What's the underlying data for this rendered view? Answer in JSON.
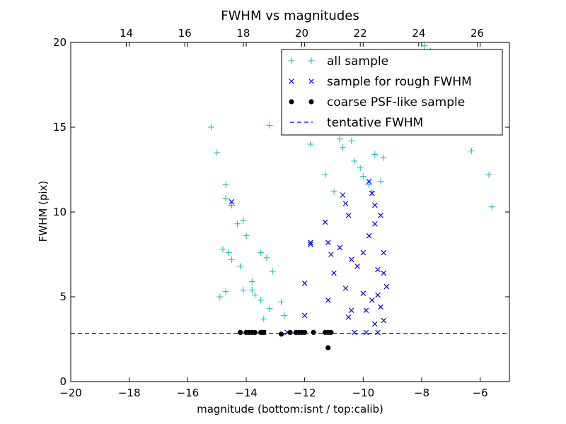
{
  "chart_data": {
    "type": "scatter",
    "title": "FWHM vs magnitudes",
    "xlabel": "magnitude (bottom:isnt / top:calib)",
    "ylabel": "FWHM (pix)",
    "xlim": [
      -20,
      -5
    ],
    "ylim": [
      0,
      20
    ],
    "x_ticks": [
      -20,
      -18,
      -16,
      -14,
      -12,
      -10,
      -8,
      -6
    ],
    "x_tick_labels": [
      "−20",
      "−18",
      "−16",
      "−14",
      "−12",
      "−10",
      "−8",
      "−6"
    ],
    "y_ticks": [
      0,
      5,
      10,
      15,
      20
    ],
    "y_tick_labels": [
      "0",
      "5",
      "10",
      "15",
      "20"
    ],
    "top_axis": {
      "offset": 32.1,
      "ticks": [
        14,
        16,
        18,
        20,
        22,
        24,
        26
      ],
      "tick_labels": [
        "14",
        "16",
        "18",
        "20",
        "22",
        "24",
        "26"
      ]
    },
    "grid": false,
    "legend_position": "top-right",
    "series": [
      {
        "name": "all sample",
        "marker": "+",
        "color": "#00bfbf",
        "points": [
          [
            -15.2,
            15.0
          ],
          [
            -15.0,
            13.5
          ],
          [
            -14.7,
            11.6
          ],
          [
            -14.7,
            10.8
          ],
          [
            -14.5,
            10.4
          ],
          [
            -14.3,
            9.3
          ],
          [
            -14.1,
            9.5
          ],
          [
            -14.0,
            8.6
          ],
          [
            -14.8,
            7.8
          ],
          [
            -14.6,
            7.6
          ],
          [
            -14.5,
            7.2
          ],
          [
            -14.2,
            6.8
          ],
          [
            -13.5,
            7.6
          ],
          [
            -13.3,
            7.3
          ],
          [
            -13.1,
            6.5
          ],
          [
            -14.7,
            5.3
          ],
          [
            -14.9,
            5.0
          ],
          [
            -14.1,
            5.4
          ],
          [
            -13.8,
            5.9
          ],
          [
            -13.8,
            5.4
          ],
          [
            -13.7,
            5.1
          ],
          [
            -13.5,
            4.8
          ],
          [
            -13.2,
            4.3
          ],
          [
            -12.8,
            4.7
          ],
          [
            -13.4,
            3.7
          ],
          [
            -12.7,
            3.9
          ],
          [
            -13.2,
            15.1
          ],
          [
            -12.6,
            15.2
          ],
          [
            -11.9,
            15.8
          ],
          [
            -11.2,
            15.5
          ],
          [
            -11.8,
            14.0
          ],
          [
            -11.3,
            12.2
          ],
          [
            -11.0,
            11.2
          ],
          [
            -10.8,
            14.3
          ],
          [
            -10.7,
            13.8
          ],
          [
            -10.4,
            14.2
          ],
          [
            -10.3,
            13.0
          ],
          [
            -10.1,
            12.6
          ],
          [
            -10.0,
            12.1
          ],
          [
            -9.8,
            11.6
          ],
          [
            -9.7,
            11.2
          ],
          [
            -9.6,
            13.4
          ],
          [
            -9.4,
            11.8
          ],
          [
            -9.3,
            13.2
          ],
          [
            -9.0,
            16.2
          ],
          [
            -8.6,
            17.0
          ],
          [
            -8.3,
            16.5
          ],
          [
            -8.1,
            18.2
          ],
          [
            -7.9,
            19.8
          ],
          [
            -7.7,
            19.5
          ],
          [
            -7.5,
            17.8
          ],
          [
            -7.2,
            16.9
          ],
          [
            -7.0,
            16.1
          ],
          [
            -6.6,
            15.1
          ],
          [
            -6.3,
            13.6
          ],
          [
            -5.7,
            12.2
          ],
          [
            -5.6,
            10.3
          ]
        ]
      },
      {
        "name": "sample for rough FWHM",
        "marker": "x",
        "color": "#0000ff",
        "points": [
          [
            -14.5,
            10.6
          ],
          [
            -13.4,
            2.9
          ],
          [
            -12.6,
            2.9
          ],
          [
            -12.2,
            2.9
          ],
          [
            -11.8,
            8.1
          ],
          [
            -11.8,
            8.2
          ],
          [
            -11.3,
            9.4
          ],
          [
            -11.2,
            8.2
          ],
          [
            -11.1,
            7.5
          ],
          [
            -11.0,
            6.4
          ],
          [
            -11.2,
            4.8
          ],
          [
            -12.0,
            5.8
          ],
          [
            -12.0,
            3.9
          ],
          [
            -10.7,
            11.0
          ],
          [
            -10.6,
            10.5
          ],
          [
            -10.5,
            9.8
          ],
          [
            -10.8,
            7.9
          ],
          [
            -10.4,
            7.2
          ],
          [
            -10.6,
            5.5
          ],
          [
            -10.4,
            4.2
          ],
          [
            -10.5,
            3.8
          ],
          [
            -10.2,
            6.8
          ],
          [
            -10.0,
            7.6
          ],
          [
            -10.0,
            5.2
          ],
          [
            -9.9,
            4.2
          ],
          [
            -9.8,
            11.8
          ],
          [
            -9.7,
            11.1
          ],
          [
            -9.6,
            10.4
          ],
          [
            -9.6,
            9.3
          ],
          [
            -9.8,
            8.6
          ],
          [
            -9.5,
            6.6
          ],
          [
            -9.5,
            5.1
          ],
          [
            -9.4,
            9.8
          ],
          [
            -9.3,
            7.6
          ],
          [
            -9.3,
            6.4
          ],
          [
            -9.2,
            5.6
          ],
          [
            -9.4,
            4.4
          ],
          [
            -9.3,
            3.6
          ],
          [
            -9.6,
            3.4
          ],
          [
            -9.7,
            4.8
          ],
          [
            -10.3,
            2.9
          ],
          [
            -9.9,
            2.9
          ],
          [
            -9.5,
            2.9
          ]
        ]
      },
      {
        "name": "coarse PSF-like sample",
        "marker": "o",
        "color": "#000000",
        "points": [
          [
            -14.2,
            2.9
          ],
          [
            -14.0,
            2.9
          ],
          [
            -13.9,
            2.9
          ],
          [
            -13.8,
            2.9
          ],
          [
            -13.7,
            2.9
          ],
          [
            -13.5,
            2.9
          ],
          [
            -13.4,
            2.9
          ],
          [
            -12.8,
            2.8
          ],
          [
            -12.5,
            2.9
          ],
          [
            -12.3,
            2.9
          ],
          [
            -12.2,
            2.9
          ],
          [
            -12.1,
            2.9
          ],
          [
            -12.0,
            2.9
          ],
          [
            -11.7,
            2.9
          ],
          [
            -11.3,
            2.9
          ],
          [
            -11.2,
            2.9
          ],
          [
            -11.1,
            2.9
          ],
          [
            -11.2,
            2.0
          ]
        ]
      },
      {
        "name": "tentative FWHM",
        "marker": "--",
        "color": "#0000ff",
        "y": 2.85
      }
    ]
  }
}
